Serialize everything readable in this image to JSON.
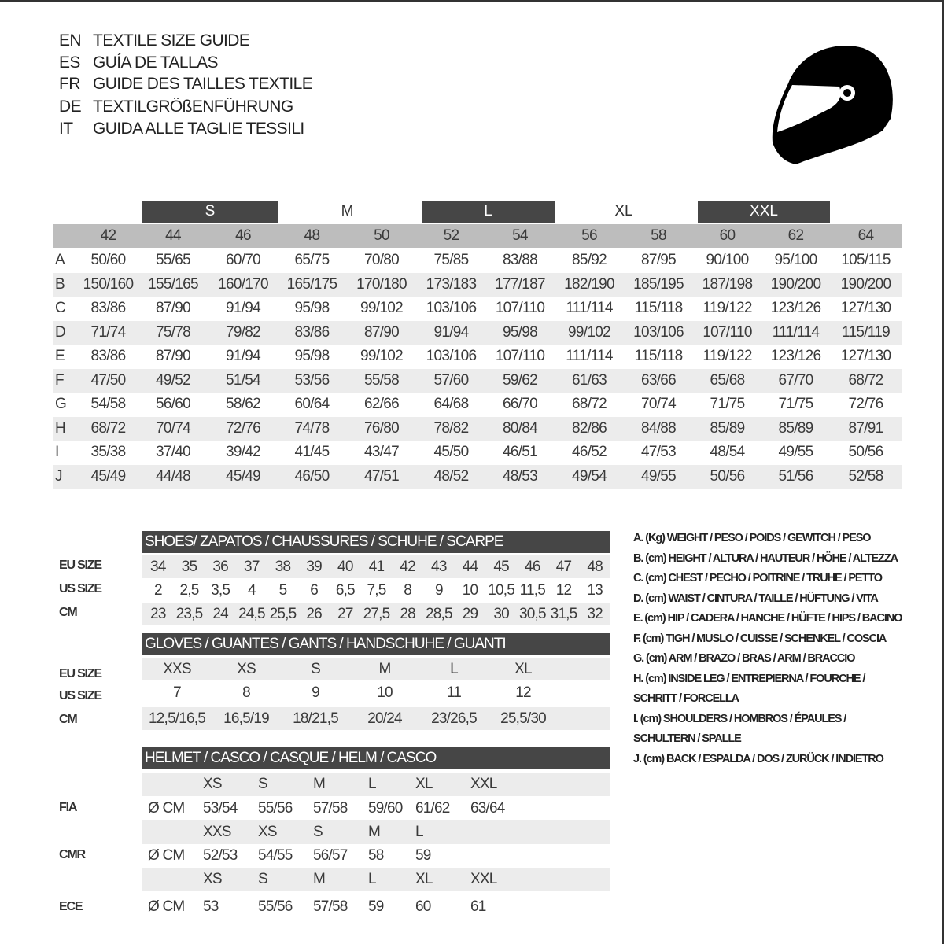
{
  "titles": [
    {
      "code": "EN",
      "text": "TEXTILE SIZE GUIDE"
    },
    {
      "code": "ES",
      "text": "GUÍA DE TALLAS"
    },
    {
      "code": "FR",
      "text": "GUIDE DES TAILLES TEXTILE"
    },
    {
      "code": "DE",
      "text": "TEXTILGRÖßENFÜHRUNG"
    },
    {
      "code": "IT",
      "text": "GUIDA ALLE TAGLIE TESSILI"
    }
  ],
  "icon": "helmet-icon",
  "colors": {
    "dark_band": "#464646",
    "header_gray": "#bdbdbd",
    "row_shade": "#ececec"
  },
  "textile": {
    "bands": [
      "S",
      "M",
      "L",
      "XL",
      "XXL"
    ],
    "sizes": [
      "42",
      "44",
      "46",
      "48",
      "50",
      "52",
      "54",
      "56",
      "58",
      "60",
      "62",
      "64"
    ],
    "rows": [
      {
        "letter": "A",
        "values": [
          "50/60",
          "55/65",
          "60/70",
          "65/75",
          "70/80",
          "75/85",
          "83/88",
          "85/92",
          "87/95",
          "90/100",
          "95/100",
          "105/115"
        ]
      },
      {
        "letter": "B",
        "values": [
          "150/160",
          "155/165",
          "160/170",
          "165/175",
          "170/180",
          "173/183",
          "177/187",
          "182/190",
          "185/195",
          "187/198",
          "190/200",
          "190/200"
        ]
      },
      {
        "letter": "C",
        "values": [
          "83/86",
          "87/90",
          "91/94",
          "95/98",
          "99/102",
          "103/106",
          "107/110",
          "111/114",
          "115/118",
          "119/122",
          "123/126",
          "127/130"
        ]
      },
      {
        "letter": "D",
        "values": [
          "71/74",
          "75/78",
          "79/82",
          "83/86",
          "87/90",
          "91/94",
          "95/98",
          "99/102",
          "103/106",
          "107/110",
          "111/114",
          "115/119"
        ]
      },
      {
        "letter": "E",
        "values": [
          "83/86",
          "87/90",
          "91/94",
          "95/98",
          "99/102",
          "103/106",
          "107/110",
          "111/114",
          "115/118",
          "119/122",
          "123/126",
          "127/130"
        ]
      },
      {
        "letter": "F",
        "values": [
          "47/50",
          "49/52",
          "51/54",
          "53/56",
          "55/58",
          "57/60",
          "59/62",
          "61/63",
          "63/66",
          "65/68",
          "67/70",
          "68/72"
        ]
      },
      {
        "letter": "G",
        "values": [
          "54/58",
          "56/60",
          "58/62",
          "60/64",
          "62/66",
          "64/68",
          "66/70",
          "68/72",
          "70/74",
          "71/75",
          "71/75",
          "72/76"
        ]
      },
      {
        "letter": "H",
        "values": [
          "68/72",
          "70/74",
          "72/76",
          "74/78",
          "76/80",
          "78/82",
          "80/84",
          "82/86",
          "84/88",
          "85/89",
          "85/89",
          "87/91"
        ]
      },
      {
        "letter": "I",
        "values": [
          "35/38",
          "37/40",
          "39/42",
          "41/45",
          "43/47",
          "45/50",
          "46/51",
          "46/52",
          "47/53",
          "48/54",
          "49/55",
          "50/56"
        ]
      },
      {
        "letter": "J",
        "values": [
          "45/49",
          "44/48",
          "45/49",
          "46/50",
          "47/51",
          "48/52",
          "48/53",
          "49/54",
          "49/55",
          "50/56",
          "51/56",
          "52/58"
        ]
      }
    ]
  },
  "shoes": {
    "title": "SHOES/ ZAPATOS / CHAUSSURES / SCHUHE / SCARPE",
    "rows": [
      {
        "label": "EU SIZE",
        "values": [
          "34",
          "35",
          "36",
          "37",
          "38",
          "39",
          "40",
          "41",
          "42",
          "43",
          "44",
          "45",
          "46",
          "47",
          "48"
        ]
      },
      {
        "label": "US SIZE",
        "values": [
          "2",
          "2,5",
          "3,5",
          "4",
          "5",
          "6",
          "6,5",
          "7,5",
          "8",
          "9",
          "10",
          "10,5",
          "11,5",
          "12",
          "13"
        ]
      },
      {
        "label": "CM",
        "values": [
          "23",
          "23,5",
          "24",
          "24,5",
          "25,5",
          "26",
          "27",
          "27,5",
          "28",
          "28,5",
          "29",
          "30",
          "30,5",
          "31,5",
          "32"
        ]
      }
    ]
  },
  "gloves": {
    "title": "GLOVES / GUANTES / GANTS / HANDSCHUHE / GUANTI",
    "rows": [
      {
        "label": "EU SIZE",
        "values": [
          "XXS",
          "XS",
          "S",
          "M",
          "L",
          "XL"
        ]
      },
      {
        "label": "US SIZE",
        "values": [
          "7",
          "8",
          "9",
          "10",
          "11",
          "12"
        ]
      },
      {
        "label": "CM",
        "values": [
          "12,5/16,5",
          "16,5/19",
          "18/21,5",
          "20/24",
          "23/26,5",
          "25,5/30"
        ]
      }
    ]
  },
  "helmet": {
    "title": "HELMET / CASCO / CASQUE / HELM / CASCO",
    "unit": "Ø CM",
    "standards": [
      {
        "label": "FIA",
        "sizes": [
          "XS",
          "S",
          "M",
          "L",
          "XL",
          "XXL"
        ],
        "values": [
          "53/54",
          "55/56",
          "57/58",
          "59/60",
          "61/62",
          "63/64"
        ]
      },
      {
        "label": "CMR",
        "sizes": [
          "XXS",
          "XS",
          "S",
          "M",
          "L"
        ],
        "values": [
          "52/53",
          "54/55",
          "56/57",
          "58",
          "59"
        ]
      },
      {
        "label": "ECE",
        "sizes": [
          "XS",
          "S",
          "M",
          "L",
          "XL",
          "XXL"
        ],
        "values": [
          "53",
          "55/56",
          "57/58",
          "59",
          "60",
          "61"
        ]
      }
    ]
  },
  "legend": [
    "A. (Kg) WEIGHT / PESO / POIDS / GEWITCH / PESO",
    "B. (cm) HEIGHT / ALTURA / HAUTEUR / HÖHE / ALTEZZA",
    "C. (cm) CHEST / PECHO / POITRINE / TRUHE / PETTO",
    "D. (cm) WAIST / CINTURA / TAILLE / HÜFTUNG / VITA",
    "E. (cm) HIP / CADERA / HANCHE / HÜFTE / HIPS /  BACINO",
    "F.  (cm) TIGH / MUSLO / CUISSE / SCHENKEL / COSCIA",
    "G. (cm) ARM  / BRAZO / BRAS / ARM / BRACCIO",
    "H. (cm) INSIDE LEG / ENTREPIERNA / FOURCHE /",
    "SCHRITT / FORCELLA",
    "I.  (cm) SHOULDERS / HOMBROS / ÉPAULES /",
    "SCHULTERN / SPALLE",
    "J. (cm) BACK / ESPALDA / DOS / ZURÜCK / INDIETRO"
  ]
}
